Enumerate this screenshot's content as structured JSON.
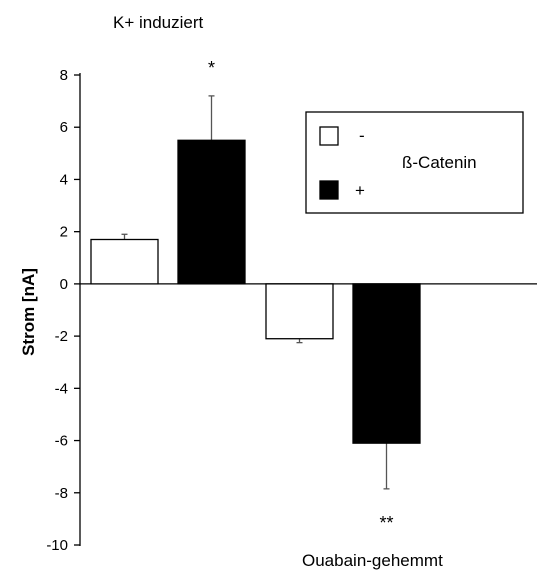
{
  "chart_data": {
    "type": "bar",
    "ylabel": "Strom [nA]",
    "ylim": [
      -10,
      8
    ],
    "yticks": [
      8,
      6,
      4,
      2,
      0,
      -2,
      -4,
      -6,
      -8,
      -10
    ],
    "groups": [
      {
        "annotation": "K+ induziert",
        "bars": [
          {
            "series": "-",
            "value": 1.7,
            "error": 0.2,
            "significance": ""
          },
          {
            "series": "+",
            "value": 5.5,
            "error": 1.7,
            "significance": "*"
          }
        ]
      },
      {
        "annotation": "Ouabain-gehemmt",
        "bars": [
          {
            "series": "-",
            "value": -2.1,
            "error": 0.15,
            "significance": ""
          },
          {
            "series": "+",
            "value": -6.1,
            "error": 1.75,
            "significance": "**"
          }
        ]
      }
    ],
    "legend": {
      "title": "ß-Catenin",
      "placement": "top-right",
      "entries": [
        {
          "label": "-",
          "color": "#ffffff"
        },
        {
          "label": "+",
          "color": "#000000"
        }
      ]
    },
    "colors": {
      "-": "#ffffff",
      "+": "#000000"
    }
  }
}
